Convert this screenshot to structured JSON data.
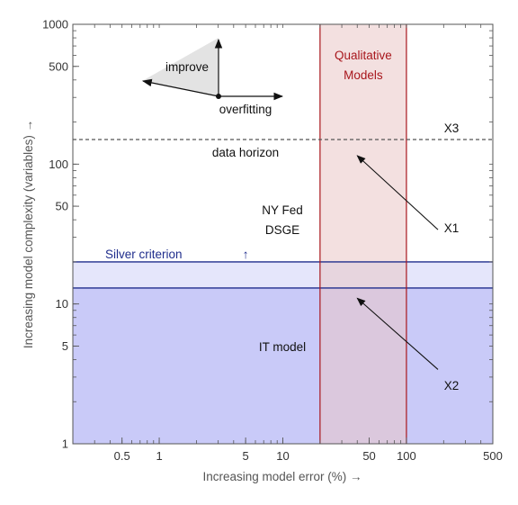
{
  "chart_data": {
    "type": "line",
    "x_scale": "log",
    "y_scale": "log",
    "xlim": [
      0.2,
      500
    ],
    "ylim": [
      1,
      1000
    ],
    "xlabel": "Increasing model error (%) →",
    "ylabel": "Increasing model complexity (variables) →",
    "x_ticks": [
      {
        "value": 0.5,
        "label": "0.5"
      },
      {
        "value": 1,
        "label": "1"
      },
      {
        "value": 5,
        "label": "5"
      },
      {
        "value": 10,
        "label": "10"
      },
      {
        "value": 50,
        "label": "50"
      },
      {
        "value": 100,
        "label": "100"
      },
      {
        "value": 500,
        "label": "500"
      }
    ],
    "y_ticks": [
      {
        "value": 1,
        "label": "1"
      },
      {
        "value": 5,
        "label": "5"
      },
      {
        "value": 10,
        "label": "10"
      },
      {
        "value": 50,
        "label": "50"
      },
      {
        "value": 100,
        "label": "100"
      },
      {
        "value": 500,
        "label": "500"
      },
      {
        "value": 1000,
        "label": "1000"
      }
    ],
    "grid": false,
    "regions": {
      "it_model": {
        "x": [
          0.2,
          500
        ],
        "y": [
          1,
          13
        ],
        "color": "#c9caf8",
        "label": "IT model"
      },
      "silver_band": {
        "x": [
          0.2,
          500
        ],
        "y": [
          13,
          20
        ],
        "color": "#e5e6fb",
        "boundary_color": "#1f2d8c",
        "label": "Silver criterion"
      },
      "qualitative": {
        "x": [
          20,
          100
        ],
        "y": [
          1,
          1000
        ],
        "color": "#f4dede",
        "edge_color": "#a8161c",
        "label_lines": [
          "Qualitative",
          "Models"
        ]
      }
    },
    "data_horizon": {
      "y": 150,
      "label": "data horizon",
      "color": "#555555"
    },
    "silver_arrow": {
      "x": 5,
      "y": 20.5,
      "symbol": "↑"
    },
    "texts": {
      "ny_fed": {
        "x": 10,
        "y": 45,
        "lines": [
          "NY Fed",
          "DSGE"
        ]
      },
      "x3": {
        "x": 200,
        "y": 160,
        "label": "X3"
      },
      "x1": {
        "x": 200,
        "y": 30,
        "label": "X1"
      },
      "x2": {
        "x": 200,
        "y": 3.2,
        "label": "X2"
      }
    },
    "arrows": [
      {
        "name": "x1-arrow",
        "from": [
          180,
          34
        ],
        "to": [
          40,
          115
        ]
      },
      {
        "name": "x2-arrow",
        "from": [
          180,
          3.4
        ],
        "to": [
          40,
          11
        ]
      }
    ],
    "compass": {
      "labels": {
        "improve": "improve",
        "overfitting": "overfitting"
      },
      "triangle_color": "#e3e3e3"
    }
  }
}
